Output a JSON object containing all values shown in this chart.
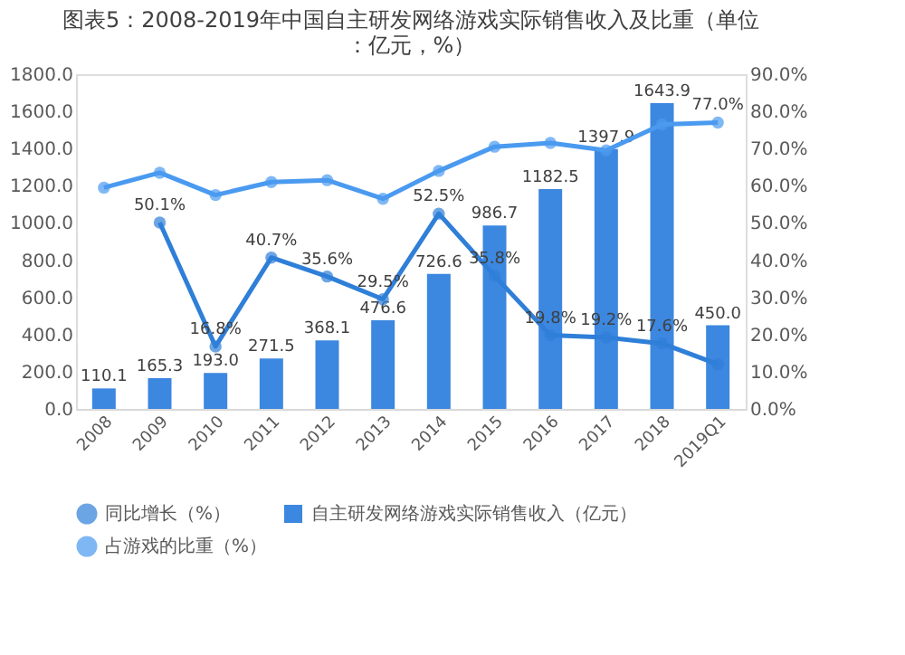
{
  "chart_data": {
    "type": "bar",
    "title": "图表5：2008-2019年中国自主研发网络游戏实际销售收入及比重（单位：亿元，%）",
    "categories": [
      "2008",
      "2009",
      "2010",
      "2011",
      "2012",
      "2013",
      "2014",
      "2015",
      "2016",
      "2017",
      "2018",
      "2019Q1"
    ],
    "series": [
      {
        "name": "自主研发网络游戏实际销售收入（亿元）",
        "type": "bar",
        "color": "#3c87e0",
        "values": [
          110.1,
          165.3,
          193.0,
          271.5,
          368.1,
          476.6,
          726.6,
          986.7,
          1182.5,
          1397.9,
          1643.9,
          450.0
        ],
        "value_labels": [
          "110.1",
          "165.3",
          "193.0",
          "271.5",
          "368.1",
          "476.6",
          "726.6",
          "986.7",
          "1182.5",
          "1397.9",
          "1643.9",
          "450.0"
        ]
      },
      {
        "name": "同比增长（%）",
        "type": "line",
        "axis": "y2",
        "color": "#2f7fd8",
        "values": [
          null,
          50.1,
          16.8,
          40.7,
          35.6,
          29.5,
          52.5,
          35.8,
          19.8,
          19.2,
          17.6,
          12.0
        ],
        "value_labels": [
          null,
          "50.1%",
          "16.8%",
          "40.7%",
          "35.6%",
          "29.5%",
          "52.5%",
          "35.8%",
          "19.8%",
          "19.2%",
          "17.6%",
          null
        ]
      },
      {
        "name": "占游戏的比重（%）",
        "type": "line",
        "axis": "y2",
        "color": "#4a9af0",
        "values": [
          59.5,
          63.5,
          57.5,
          61.0,
          61.5,
          56.5,
          64.0,
          70.5,
          71.5,
          69.5,
          76.5,
          77.0
        ],
        "value_labels": [
          null,
          null,
          null,
          null,
          null,
          null,
          null,
          null,
          null,
          null,
          null,
          "77.0%"
        ]
      }
    ],
    "ylim": [
      0,
      1800
    ],
    "yticks": [
      {
        "value": 0,
        "label": "0.0"
      },
      {
        "value": 200,
        "label": "200.0"
      },
      {
        "value": 400,
        "label": "400.0"
      },
      {
        "value": 600,
        "label": "600.0"
      },
      {
        "value": 800,
        "label": "800.0"
      },
      {
        "value": 1000,
        "label": "1000.0"
      },
      {
        "value": 1200,
        "label": "1200.0"
      },
      {
        "value": 1400,
        "label": "1400.0"
      },
      {
        "value": 1600,
        "label": "1600.0"
      },
      {
        "value": 1800,
        "label": "1800.0"
      }
    ],
    "y2lim": [
      0,
      90
    ],
    "y2ticks": [
      {
        "value": 0,
        "label": "0.0%"
      },
      {
        "value": 10,
        "label": "10.0%"
      },
      {
        "value": 20,
        "label": "20.0%"
      },
      {
        "value": 30,
        "label": "30.0%"
      },
      {
        "value": 40,
        "label": "40.0%"
      },
      {
        "value": 50,
        "label": "50.0%"
      },
      {
        "value": 60,
        "label": "60.0%"
      },
      {
        "value": 70,
        "label": "70.0%"
      },
      {
        "value": 80,
        "label": "80.0%"
      },
      {
        "value": 90,
        "label": "90.0%"
      }
    ],
    "marker": "circle",
    "grid": false,
    "legend": "bottom"
  }
}
